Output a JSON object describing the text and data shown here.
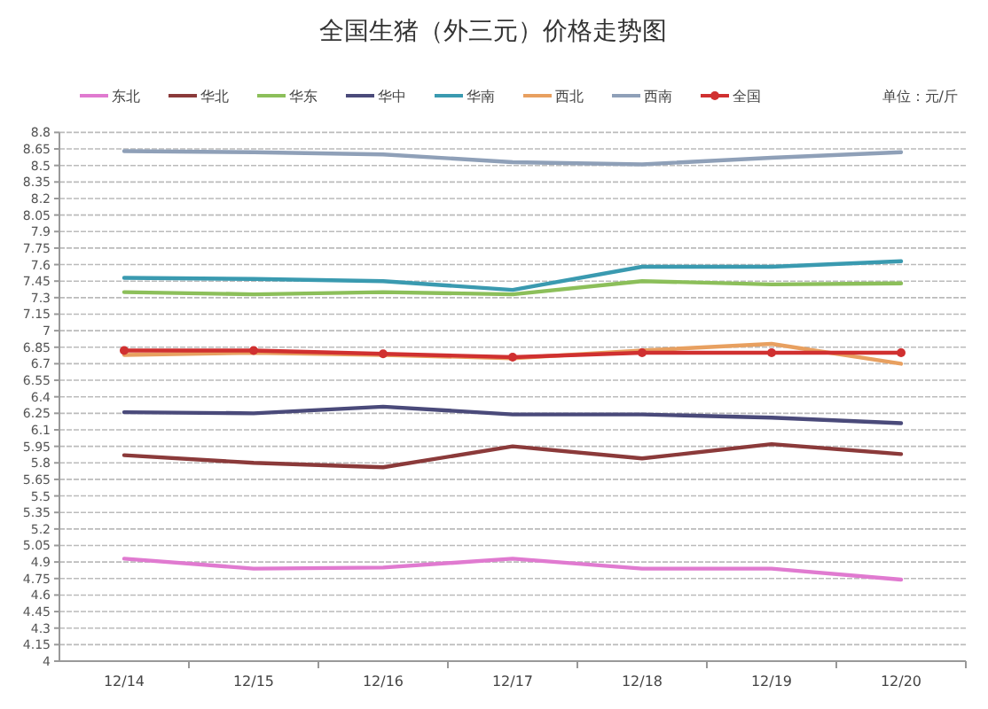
{
  "chart_data": {
    "type": "line",
    "title": "全国生猪（外三元）价格走势图",
    "annotations": [
      "单位：元/斤"
    ],
    "categories": [
      "12/14",
      "12/15",
      "12/16",
      "12/17",
      "12/18",
      "12/19",
      "12/20"
    ],
    "series": [
      {
        "name": "东北",
        "color": "#e07ad0",
        "values": [
          4.93,
          4.84,
          4.85,
          4.93,
          4.84,
          4.84,
          4.74
        ]
      },
      {
        "name": "华北",
        "color": "#8b3a3a",
        "values": [
          5.87,
          5.8,
          5.76,
          5.95,
          5.84,
          5.97,
          5.88
        ]
      },
      {
        "name": "华东",
        "color": "#8cbf5a",
        "values": [
          7.35,
          7.33,
          7.35,
          7.33,
          7.45,
          7.42,
          7.43
        ]
      },
      {
        "name": "华中",
        "color": "#4a4a7a",
        "values": [
          6.26,
          6.25,
          6.31,
          6.24,
          6.24,
          6.21,
          6.16
        ]
      },
      {
        "name": "华南",
        "color": "#3a9ab0",
        "values": [
          7.48,
          7.47,
          7.45,
          7.37,
          7.58,
          7.58,
          7.63
        ]
      },
      {
        "name": "西北",
        "color": "#e8a060",
        "values": [
          6.78,
          6.8,
          6.78,
          6.75,
          6.82,
          6.88,
          6.7
        ]
      },
      {
        "name": "西南",
        "color": "#8fa0b8",
        "values": [
          8.63,
          8.62,
          8.6,
          8.53,
          8.51,
          8.57,
          8.62
        ]
      },
      {
        "name": "全国",
        "color": "#d03030",
        "marker": "circle",
        "values": [
          6.82,
          6.82,
          6.79,
          6.76,
          6.8,
          6.8,
          6.8
        ]
      }
    ],
    "ylim": [
      4,
      8.8
    ],
    "yticks": [
      4,
      4.15,
      4.3,
      4.45,
      4.6,
      4.75,
      4.9,
      5.05,
      5.2,
      5.35,
      5.5,
      5.65,
      5.8,
      5.95,
      6.1,
      6.25,
      6.4,
      6.55,
      6.7,
      6.85,
      7,
      7.15,
      7.3,
      7.45,
      7.6,
      7.75,
      7.9,
      8.05,
      8.2,
      8.35,
      8.5,
      8.65,
      8.8
    ],
    "grid": "y",
    "line_style": "solid",
    "legend": "top"
  }
}
